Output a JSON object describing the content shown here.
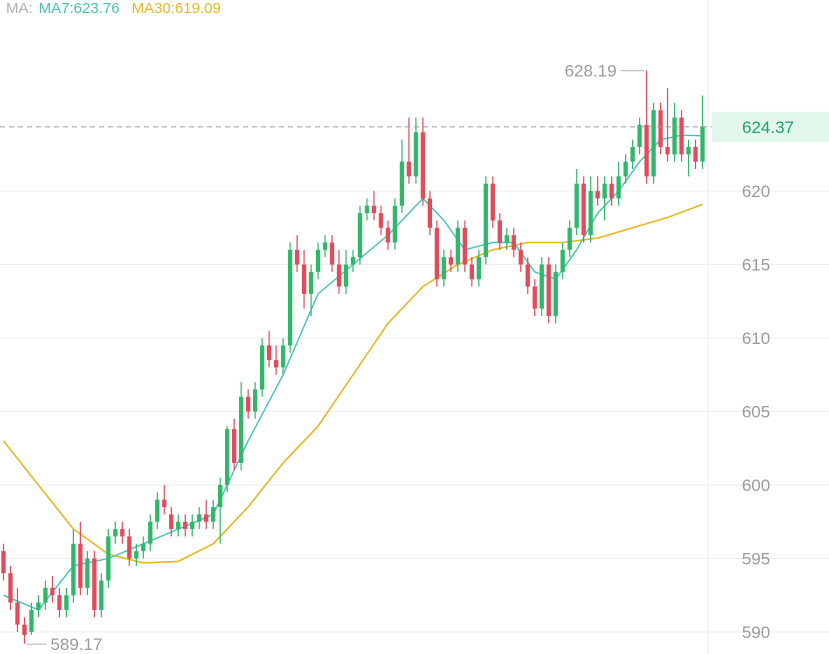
{
  "legend": {
    "label": "MA:",
    "ma7": "MA7:623.76",
    "ma30": "MA30:619.09"
  },
  "current_price_label": "624.37",
  "annotations": {
    "high": "628.19",
    "low": "589.17"
  },
  "colors": {
    "up": "#2fb86a",
    "down": "#e24b5a",
    "ma7": "#43c3b8",
    "ma30": "#e5b822",
    "grid": "#eeeeee",
    "axis_text": "#9b9b9b",
    "price_tag_bg": "#e3f6ec",
    "price_tag_text": "#1aa56a"
  },
  "chart_data": {
    "type": "candlestick",
    "ylim": [
      588.5,
      633
    ],
    "yticks": [
      {
        "value": 620,
        "label": "620"
      },
      {
        "value": 615,
        "label": "615"
      },
      {
        "value": 610,
        "label": "610"
      },
      {
        "value": 605,
        "label": "605"
      },
      {
        "value": 600,
        "label": "600"
      },
      {
        "value": 595,
        "label": "595"
      },
      {
        "value": 590,
        "label": "590"
      }
    ],
    "current_price": 624.37,
    "high_point": {
      "value": 628.19,
      "index": 92
    },
    "low_point": {
      "value": 589.17,
      "index": 3
    },
    "candles": [
      [
        595.5,
        594.0,
        596.0,
        593.5
      ],
      [
        594.0,
        592.0,
        594.5,
        591.5
      ],
      [
        592.0,
        590.5,
        593.0,
        590.0
      ],
      [
        590.5,
        589.8,
        591.0,
        589.2
      ],
      [
        590.0,
        591.5,
        592.0,
        589.8
      ],
      [
        591.5,
        592.0,
        592.5,
        591.0
      ],
      [
        592.0,
        593.0,
        593.5,
        591.5
      ],
      [
        593.0,
        592.5,
        593.8,
        592.0
      ],
      [
        592.5,
        591.5,
        593.0,
        591.0
      ],
      [
        591.5,
        592.5,
        593.0,
        591.0
      ],
      [
        592.5,
        596.0,
        597.0,
        592.0
      ],
      [
        596.0,
        593.0,
        597.5,
        592.5
      ],
      [
        593.0,
        595.0,
        595.5,
        592.5
      ],
      [
        595.0,
        591.5,
        595.5,
        591.0
      ],
      [
        591.5,
        593.5,
        594.0,
        591.0
      ],
      [
        593.5,
        596.5,
        597.0,
        593.0
      ],
      [
        596.5,
        597.0,
        597.5,
        596.0
      ],
      [
        597.0,
        596.5,
        597.5,
        596.0
      ],
      [
        596.5,
        595.0,
        597.0,
        594.5
      ],
      [
        595.0,
        595.5,
        596.0,
        594.5
      ],
      [
        595.5,
        596.0,
        596.5,
        595.0
      ],
      [
        596.0,
        597.5,
        598.0,
        595.5
      ],
      [
        597.5,
        599.0,
        599.5,
        597.0
      ],
      [
        599.0,
        598.5,
        600.0,
        598.0
      ],
      [
        598.0,
        597.0,
        598.5,
        596.5
      ],
      [
        597.0,
        597.5,
        598.0,
        596.5
      ],
      [
        597.5,
        597.0,
        598.0,
        596.5
      ],
      [
        597.0,
        597.5,
        598.0,
        596.5
      ],
      [
        597.5,
        598.0,
        598.5,
        597.0
      ],
      [
        598.0,
        597.5,
        599.0,
        597.0
      ],
      [
        597.5,
        598.5,
        599.0,
        597.0
      ],
      [
        598.5,
        600.0,
        600.5,
        596.0
      ],
      [
        600.0,
        603.8,
        604.0,
        599.5
      ],
      [
        603.8,
        601.5,
        604.5,
        601.0
      ],
      [
        601.5,
        606.0,
        607.0,
        601.0
      ],
      [
        606.0,
        605.0,
        606.5,
        604.5
      ],
      [
        605.0,
        606.5,
        607.0,
        604.5
      ],
      [
        606.5,
        609.5,
        610.0,
        606.0
      ],
      [
        609.5,
        608.5,
        610.5,
        608.0
      ],
      [
        608.5,
        608.0,
        609.5,
        607.5
      ],
      [
        608.0,
        609.5,
        610.0,
        607.5
      ],
      [
        609.5,
        616.0,
        616.5,
        609.0
      ],
      [
        616.0,
        615.0,
        617.0,
        614.5
      ],
      [
        615.0,
        613.0,
        616.0,
        612.0
      ],
      [
        613.0,
        614.5,
        615.0,
        611.5
      ],
      [
        614.5,
        616.0,
        616.5,
        614.0
      ],
      [
        616.0,
        616.5,
        617.0,
        615.5
      ],
      [
        616.5,
        615.0,
        617.0,
        614.5
      ],
      [
        615.0,
        613.5,
        616.0,
        613.0
      ],
      [
        613.5,
        615.0,
        616.0,
        613.0
      ],
      [
        615.0,
        615.5,
        616.0,
        614.5
      ],
      [
        615.5,
        618.5,
        619.0,
        615.0
      ],
      [
        618.5,
        619.0,
        619.5,
        618.0
      ],
      [
        619.0,
        618.5,
        620.0,
        618.0
      ],
      [
        618.5,
        617.5,
        619.0,
        617.0
      ],
      [
        617.5,
        616.5,
        618.0,
        616.0
      ],
      [
        616.5,
        619.0,
        619.5,
        616.0
      ],
      [
        619.0,
        622.0,
        623.5,
        618.5
      ],
      [
        622.0,
        621.0,
        625.0,
        620.5
      ],
      [
        621.0,
        624.0,
        625.0,
        620.5
      ],
      [
        624.0,
        619.5,
        625.0,
        619.0
      ],
      [
        619.5,
        617.5,
        620.0,
        617.0
      ],
      [
        617.5,
        614.0,
        618.0,
        613.5
      ],
      [
        614.0,
        615.5,
        616.0,
        613.5
      ],
      [
        615.5,
        615.0,
        616.0,
        614.5
      ],
      [
        615.0,
        617.5,
        618.0,
        614.5
      ],
      [
        617.5,
        615.0,
        618.0,
        614.5
      ],
      [
        615.0,
        614.0,
        615.5,
        613.5
      ],
      [
        614.0,
        615.5,
        616.0,
        613.5
      ],
      [
        615.5,
        620.5,
        621.0,
        615.0
      ],
      [
        620.5,
        618.0,
        621.0,
        617.5
      ],
      [
        618.0,
        616.5,
        618.5,
        616.0
      ],
      [
        616.5,
        617.0,
        617.5,
        616.0
      ],
      [
        617.0,
        616.0,
        617.5,
        615.5
      ],
      [
        616.0,
        615.0,
        616.5,
        614.5
      ],
      [
        615.0,
        613.5,
        615.5,
        613.0
      ],
      [
        613.5,
        612.0,
        614.0,
        611.5
      ],
      [
        612.0,
        615.0,
        615.5,
        611.5
      ],
      [
        615.0,
        611.5,
        615.5,
        611.0
      ],
      [
        611.5,
        614.5,
        615.0,
        611.0
      ],
      [
        614.5,
        616.0,
        616.5,
        614.0
      ],
      [
        616.0,
        617.5,
        618.0,
        615.5
      ],
      [
        617.5,
        620.5,
        621.5,
        617.0
      ],
      [
        620.5,
        617.0,
        621.0,
        616.5
      ],
      [
        617.0,
        620.0,
        621.0,
        616.5
      ],
      [
        620.0,
        619.5,
        621.0,
        619.0
      ],
      [
        619.5,
        620.5,
        621.0,
        618.0
      ],
      [
        620.5,
        619.5,
        621.0,
        619.0
      ],
      [
        619.5,
        621.0,
        622.0,
        619.0
      ],
      [
        621.0,
        622.0,
        622.5,
        620.5
      ],
      [
        622.0,
        623.0,
        623.5,
        621.5
      ],
      [
        623.0,
        624.5,
        625.0,
        622.5
      ],
      [
        624.5,
        621.0,
        628.2,
        620.5
      ],
      [
        621.0,
        625.5,
        626.0,
        620.5
      ],
      [
        625.5,
        623.0,
        626.0,
        622.5
      ],
      [
        623.0,
        622.5,
        627.0,
        622.0
      ],
      [
        622.5,
        625.0,
        626.0,
        622.0
      ],
      [
        625.0,
        622.5,
        625.5,
        622.0
      ],
      [
        622.5,
        623.0,
        623.5,
        621.0
      ],
      [
        623.0,
        622.0,
        623.5,
        621.5
      ],
      [
        622.0,
        624.4,
        626.5,
        621.5
      ]
    ],
    "ma7": [
      [
        0,
        592.5
      ],
      [
        5,
        591.5
      ],
      [
        10,
        594.5
      ],
      [
        15,
        595.0
      ],
      [
        20,
        596.0
      ],
      [
        25,
        597.0
      ],
      [
        30,
        598.0
      ],
      [
        35,
        603.0
      ],
      [
        40,
        607.5
      ],
      [
        45,
        613.0
      ],
      [
        50,
        615.0
      ],
      [
        55,
        617.0
      ],
      [
        60,
        619.5
      ],
      [
        63,
        618.0
      ],
      [
        66,
        616.0
      ],
      [
        70,
        616.5
      ],
      [
        73,
        616.5
      ],
      [
        76,
        614.5
      ],
      [
        79,
        614.0
      ],
      [
        82,
        616.0
      ],
      [
        85,
        618.5
      ],
      [
        88,
        620.0
      ],
      [
        91,
        622.0
      ],
      [
        94,
        623.5
      ],
      [
        97,
        623.8
      ],
      [
        100,
        623.76
      ]
    ],
    "ma30": [
      [
        0,
        603.0
      ],
      [
        5,
        600.0
      ],
      [
        10,
        597.0
      ],
      [
        15,
        595.3
      ],
      [
        20,
        594.7
      ],
      [
        25,
        594.8
      ],
      [
        30,
        596.0
      ],
      [
        35,
        598.5
      ],
      [
        40,
        601.5
      ],
      [
        45,
        604.0
      ],
      [
        50,
        607.5
      ],
      [
        55,
        611.0
      ],
      [
        60,
        613.5
      ],
      [
        65,
        615.0
      ],
      [
        70,
        616.0
      ],
      [
        75,
        616.5
      ],
      [
        80,
        616.5
      ],
      [
        85,
        616.8
      ],
      [
        90,
        617.5
      ],
      [
        95,
        618.2
      ],
      [
        100,
        619.09
      ]
    ]
  }
}
